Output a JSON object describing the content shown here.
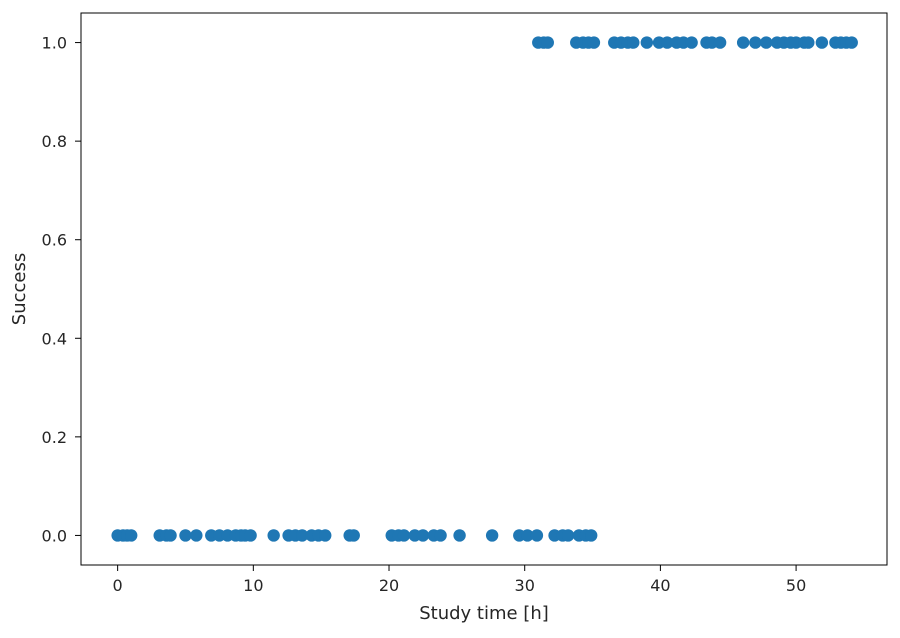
{
  "chart_data": {
    "type": "scatter",
    "title": "",
    "xlabel": "Study time [h]",
    "ylabel": "Success",
    "xlim": [
      -2.7,
      56.7
    ],
    "ylim": [
      -0.06,
      1.06
    ],
    "xticks": [
      0,
      10,
      20,
      30,
      40,
      50
    ],
    "yticks": [
      0.0,
      0.2,
      0.4,
      0.6,
      0.8,
      1.0
    ],
    "xtick_labels": [
      "0",
      "10",
      "20",
      "30",
      "40",
      "50"
    ],
    "ytick_labels": [
      "0.0",
      "0.2",
      "0.4",
      "0.6",
      "0.8",
      "1.0"
    ],
    "grid": false,
    "marker_color": "#1f77b4",
    "series": [
      {
        "name": "",
        "points": [
          {
            "x": 0.0,
            "y": 0
          },
          {
            "x": 0.4,
            "y": 0
          },
          {
            "x": 0.7,
            "y": 0
          },
          {
            "x": 1.0,
            "y": 0
          },
          {
            "x": 3.1,
            "y": 0
          },
          {
            "x": 3.6,
            "y": 0
          },
          {
            "x": 3.9,
            "y": 0
          },
          {
            "x": 5.0,
            "y": 0
          },
          {
            "x": 5.8,
            "y": 0
          },
          {
            "x": 6.9,
            "y": 0
          },
          {
            "x": 7.5,
            "y": 0
          },
          {
            "x": 8.1,
            "y": 0
          },
          {
            "x": 8.7,
            "y": 0
          },
          {
            "x": 9.1,
            "y": 0
          },
          {
            "x": 9.4,
            "y": 0
          },
          {
            "x": 9.8,
            "y": 0
          },
          {
            "x": 11.5,
            "y": 0
          },
          {
            "x": 12.6,
            "y": 0
          },
          {
            "x": 13.1,
            "y": 0
          },
          {
            "x": 13.6,
            "y": 0
          },
          {
            "x": 14.3,
            "y": 0
          },
          {
            "x": 14.8,
            "y": 0
          },
          {
            "x": 15.3,
            "y": 0
          },
          {
            "x": 17.1,
            "y": 0
          },
          {
            "x": 17.4,
            "y": 0
          },
          {
            "x": 20.2,
            "y": 0
          },
          {
            "x": 20.7,
            "y": 0
          },
          {
            "x": 21.1,
            "y": 0
          },
          {
            "x": 21.9,
            "y": 0
          },
          {
            "x": 22.5,
            "y": 0
          },
          {
            "x": 23.3,
            "y": 0
          },
          {
            "x": 23.8,
            "y": 0
          },
          {
            "x": 25.2,
            "y": 0
          },
          {
            "x": 27.6,
            "y": 0
          },
          {
            "x": 29.6,
            "y": 0
          },
          {
            "x": 30.2,
            "y": 0
          },
          {
            "x": 30.9,
            "y": 0
          },
          {
            "x": 32.2,
            "y": 0
          },
          {
            "x": 32.8,
            "y": 0
          },
          {
            "x": 33.2,
            "y": 0
          },
          {
            "x": 34.0,
            "y": 0
          },
          {
            "x": 34.5,
            "y": 0
          },
          {
            "x": 34.9,
            "y": 0
          },
          {
            "x": 31.0,
            "y": 1
          },
          {
            "x": 31.4,
            "y": 1
          },
          {
            "x": 31.7,
            "y": 1
          },
          {
            "x": 33.8,
            "y": 1
          },
          {
            "x": 34.3,
            "y": 1
          },
          {
            "x": 34.7,
            "y": 1
          },
          {
            "x": 35.1,
            "y": 1
          },
          {
            "x": 36.6,
            "y": 1
          },
          {
            "x": 37.1,
            "y": 1
          },
          {
            "x": 37.6,
            "y": 1
          },
          {
            "x": 38.0,
            "y": 1
          },
          {
            "x": 39.0,
            "y": 1
          },
          {
            "x": 39.9,
            "y": 1
          },
          {
            "x": 40.5,
            "y": 1
          },
          {
            "x": 41.2,
            "y": 1
          },
          {
            "x": 41.7,
            "y": 1
          },
          {
            "x": 42.3,
            "y": 1
          },
          {
            "x": 43.4,
            "y": 1
          },
          {
            "x": 43.8,
            "y": 1
          },
          {
            "x": 44.4,
            "y": 1
          },
          {
            "x": 46.1,
            "y": 1
          },
          {
            "x": 47.0,
            "y": 1
          },
          {
            "x": 47.8,
            "y": 1
          },
          {
            "x": 48.6,
            "y": 1
          },
          {
            "x": 49.1,
            "y": 1
          },
          {
            "x": 49.6,
            "y": 1
          },
          {
            "x": 50.0,
            "y": 1
          },
          {
            "x": 50.6,
            "y": 1
          },
          {
            "x": 50.9,
            "y": 1
          },
          {
            "x": 51.9,
            "y": 1
          },
          {
            "x": 52.9,
            "y": 1
          },
          {
            "x": 53.3,
            "y": 1
          },
          {
            "x": 53.7,
            "y": 1
          },
          {
            "x": 54.1,
            "y": 1
          }
        ]
      }
    ]
  }
}
